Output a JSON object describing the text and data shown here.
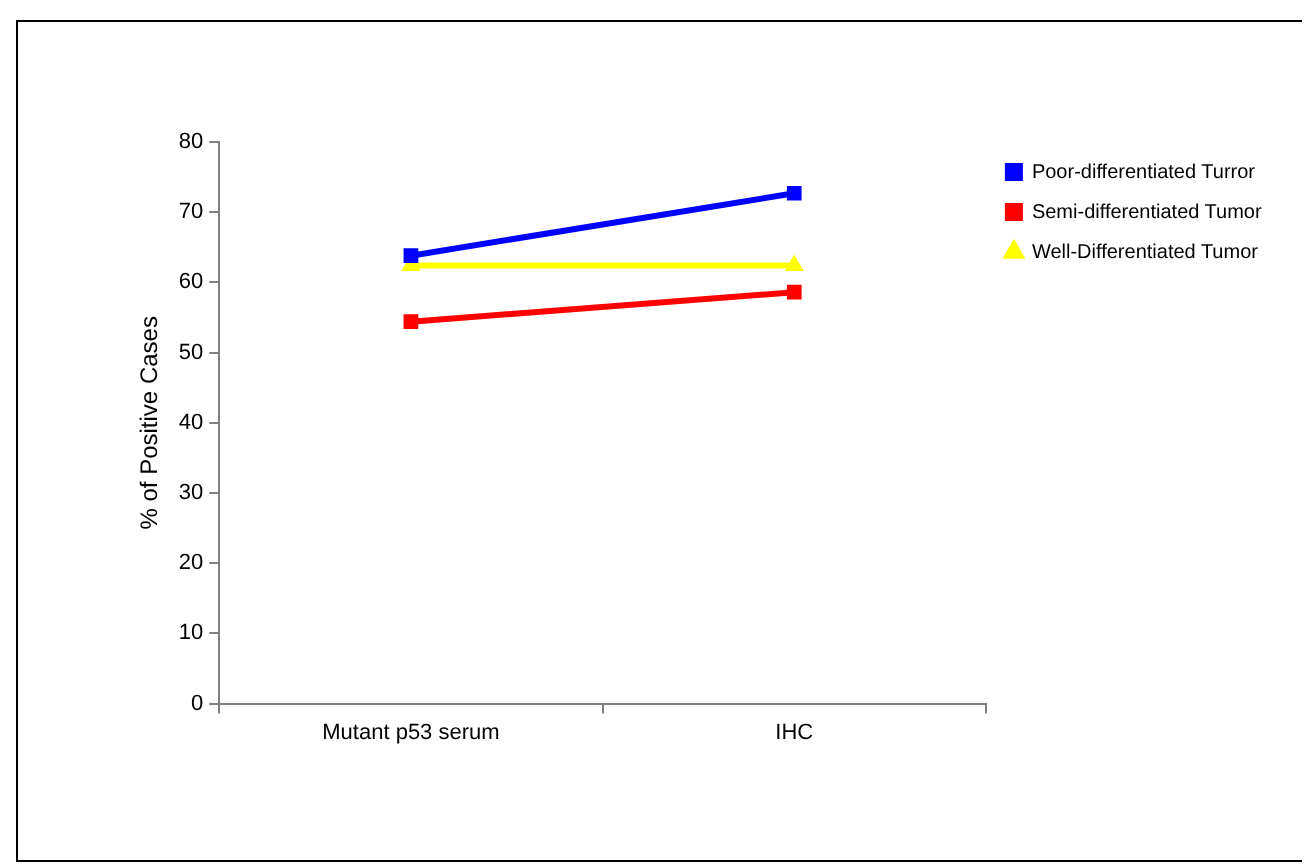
{
  "chart_data": {
    "type": "line",
    "categories": [
      "Mutant p53 serum",
      "IHC"
    ],
    "ylabel": "% of Positive Cases",
    "ylim": [
      0,
      80
    ],
    "yticks": [
      0,
      10,
      20,
      30,
      40,
      50,
      60,
      70,
      80
    ],
    "grid": false,
    "legend": "top right",
    "line_style": "solid",
    "series": [
      {
        "name": "Poor-differentiated Turror",
        "color": "#0000ff",
        "marker": "square",
        "values": [
          63.8,
          72.7
        ]
      },
      {
        "name": "Semi-differentiated Tumor",
        "color": "#ff0000",
        "marker": "square",
        "values": [
          54.4,
          58.6
        ]
      },
      {
        "name": "Well-Differentiated Tumor",
        "color": "#ffff00",
        "marker": "triangle",
        "values": [
          62.4,
          62.4
        ]
      }
    ]
  }
}
